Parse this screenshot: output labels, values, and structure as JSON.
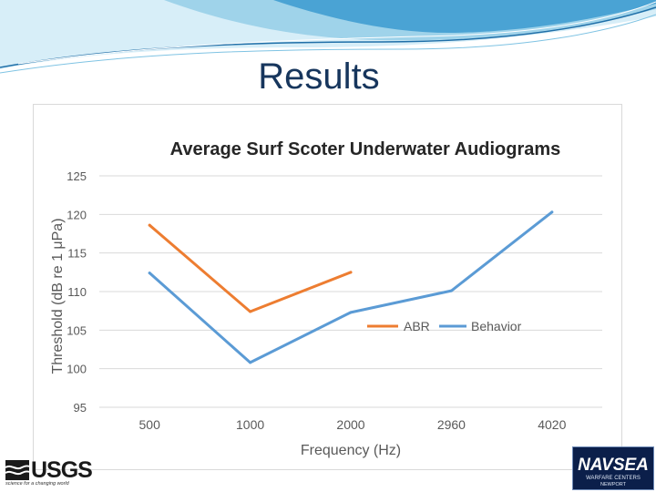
{
  "slide": {
    "title": "Results"
  },
  "logos": {
    "usgs": {
      "name": "USGS",
      "tagline": "science for a changing world"
    },
    "navsea": {
      "name": "NAVSEA",
      "subtitle": "WARFARE CENTERS",
      "location": "NEWPORT"
    }
  },
  "colors": {
    "title": "#17365d",
    "abr": "#ed7d31",
    "behavior": "#5b9bd5",
    "text": "#595959",
    "grid": "#d9d9d9",
    "wave_dark": "#1f6fa8",
    "wave_light": "#9fd3ea"
  },
  "chart_data": {
    "type": "line",
    "title": "Average Surf Scoter Underwater Audiograms",
    "xlabel": "Frequency (Hz)",
    "ylabel": "Threshold (dB re 1 μPa)",
    "categories": [
      "500",
      "1000",
      "2000",
      "2960",
      "4020"
    ],
    "ylim": [
      95,
      125
    ],
    "yticks": [
      95,
      100,
      105,
      110,
      115,
      120,
      125
    ],
    "grid": true,
    "legend_position": "center-right",
    "series": [
      {
        "name": "ABR",
        "color": "#ed7d31",
        "values": [
          118.6,
          107.4,
          112.5,
          null,
          null
        ]
      },
      {
        "name": "Behavior",
        "color": "#5b9bd5",
        "values": [
          112.4,
          100.8,
          107.3,
          110.1,
          120.3
        ]
      }
    ]
  }
}
